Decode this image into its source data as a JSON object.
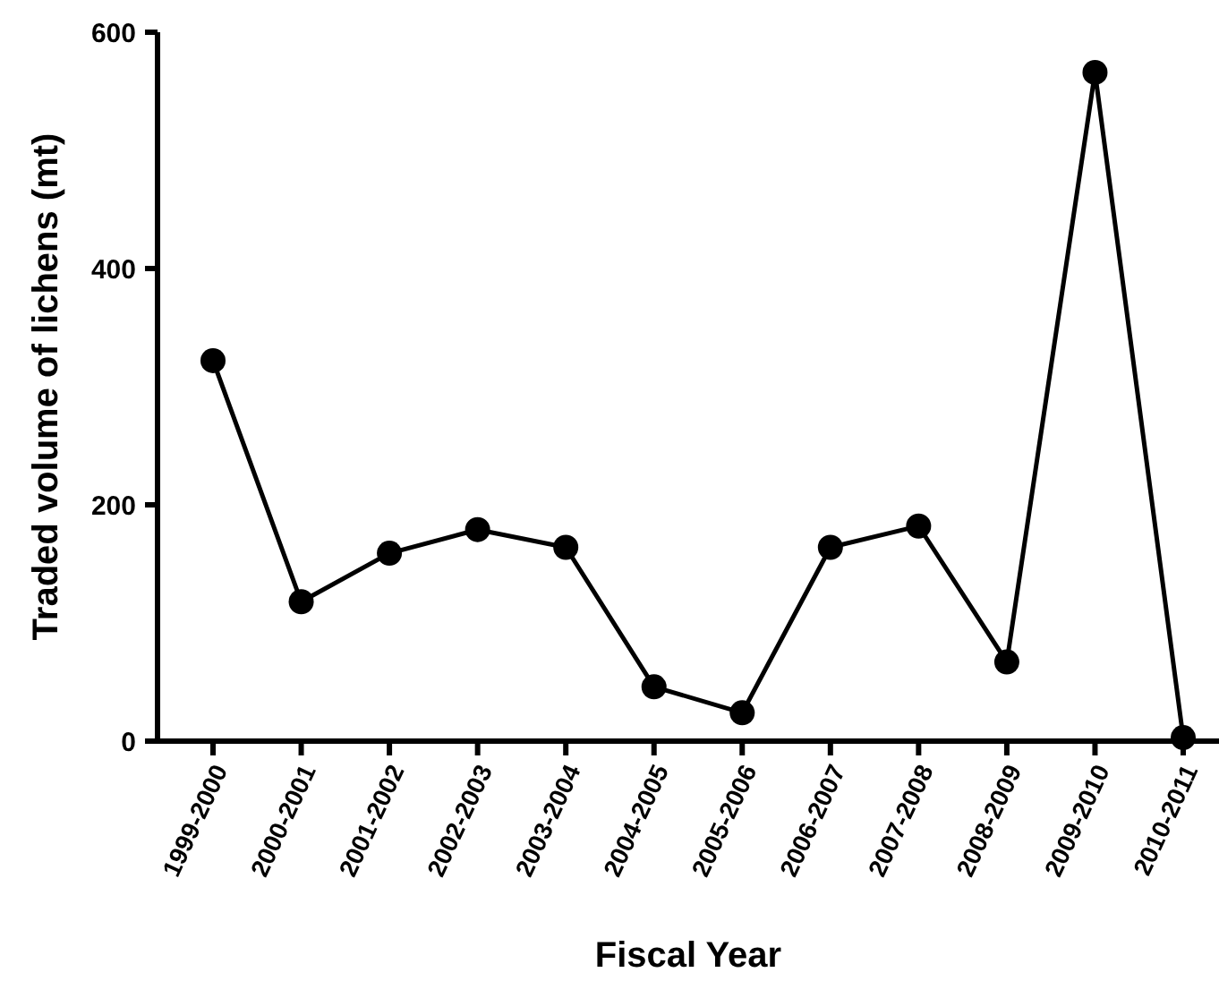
{
  "chart_data": {
    "type": "line",
    "xlabel": "Fiscal Year",
    "ylabel": "Traded volume of lichens (mt)",
    "categories": [
      "1999-2000",
      "2000-2001",
      "2001-2002",
      "2002-2003",
      "2003-2004",
      "2004-2005",
      "2005-2006",
      "2006-2007",
      "2007-2008",
      "2008-2009",
      "2009-2010",
      "2010-2011"
    ],
    "series": [
      {
        "color": "#000000",
        "values": [
          322,
          118,
          159,
          179,
          164,
          46,
          24,
          164,
          182,
          67,
          566,
          3
        ]
      }
    ],
    "ylim": [
      0,
      600
    ],
    "yticks": [
      0,
      200,
      400,
      600
    ],
    "grid": false,
    "marker": "circle",
    "line_style": "solid"
  }
}
